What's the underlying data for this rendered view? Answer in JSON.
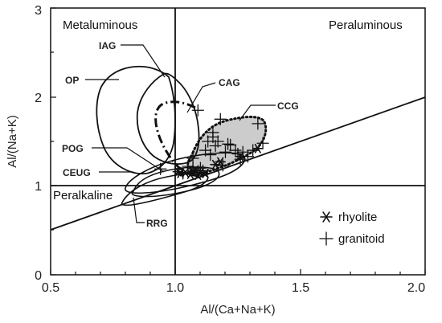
{
  "chart_data": {
    "type": "scatter",
    "xlabel": "Al/(Ca+Na+K)",
    "ylabel": "Al/(Na+K)",
    "xlim": [
      0.5,
      2.0
    ],
    "ylim": [
      0,
      3
    ],
    "x_ticks": [
      "0.5",
      "1.0",
      "1.5",
      "2.0"
    ],
    "y_ticks": [
      "0",
      "1",
      "2",
      "3"
    ],
    "region_labels": {
      "metaluminous": "Metaluminous",
      "peraluminous": "Peraluminous",
      "peralkaline": "Peralkaline"
    },
    "field_labels": {
      "iag": "IAG",
      "op": "OP",
      "cag": "CAG",
      "ccg": "CCG",
      "pog": "POG",
      "ceug": "CEUG",
      "rrg": "RRG"
    },
    "reference_lines": [
      {
        "kind": "vertical",
        "x": 1.0
      },
      {
        "kind": "horizontal",
        "y": 1.0
      },
      {
        "kind": "diagonal",
        "from": [
          0.5,
          0.5
        ],
        "to": [
          2.0,
          2.0
        ]
      }
    ],
    "series": [
      {
        "name": "rhyolite",
        "marker": "asterisk",
        "points": [
          [
            1.01,
            1.16
          ],
          [
            1.02,
            1.14
          ],
          [
            1.04,
            1.15
          ],
          [
            1.06,
            1.13
          ],
          [
            1.07,
            1.16
          ],
          [
            1.08,
            1.18
          ],
          [
            1.09,
            1.12
          ],
          [
            1.1,
            1.15
          ],
          [
            1.12,
            1.14
          ],
          [
            1.16,
            1.24
          ],
          [
            1.18,
            1.27
          ],
          [
            1.26,
            1.33
          ],
          [
            1.33,
            1.42
          ]
        ]
      },
      {
        "name": "granitoid",
        "marker": "plus",
        "points": [
          [
            0.94,
            1.19
          ],
          [
            1.03,
            1.14
          ],
          [
            1.05,
            1.22
          ],
          [
            1.07,
            1.2
          ],
          [
            1.07,
            1.31
          ],
          [
            1.09,
            1.85
          ],
          [
            1.1,
            1.2
          ],
          [
            1.11,
            1.17
          ],
          [
            1.12,
            1.4
          ],
          [
            1.13,
            1.5
          ],
          [
            1.14,
            1.35
          ],
          [
            1.15,
            1.55
          ],
          [
            1.15,
            1.6
          ],
          [
            1.16,
            1.45
          ],
          [
            1.17,
            1.5
          ],
          [
            1.18,
            1.75
          ],
          [
            1.19,
            1.23
          ],
          [
            1.2,
            1.38
          ],
          [
            1.21,
            1.47
          ],
          [
            1.22,
            1.46
          ],
          [
            1.24,
            1.4
          ],
          [
            1.25,
            1.36
          ],
          [
            1.26,
            1.3
          ],
          [
            1.27,
            1.38
          ],
          [
            1.29,
            1.33
          ],
          [
            1.31,
            1.4
          ],
          [
            1.33,
            1.7
          ],
          [
            1.35,
            1.48
          ]
        ]
      }
    ]
  }
}
